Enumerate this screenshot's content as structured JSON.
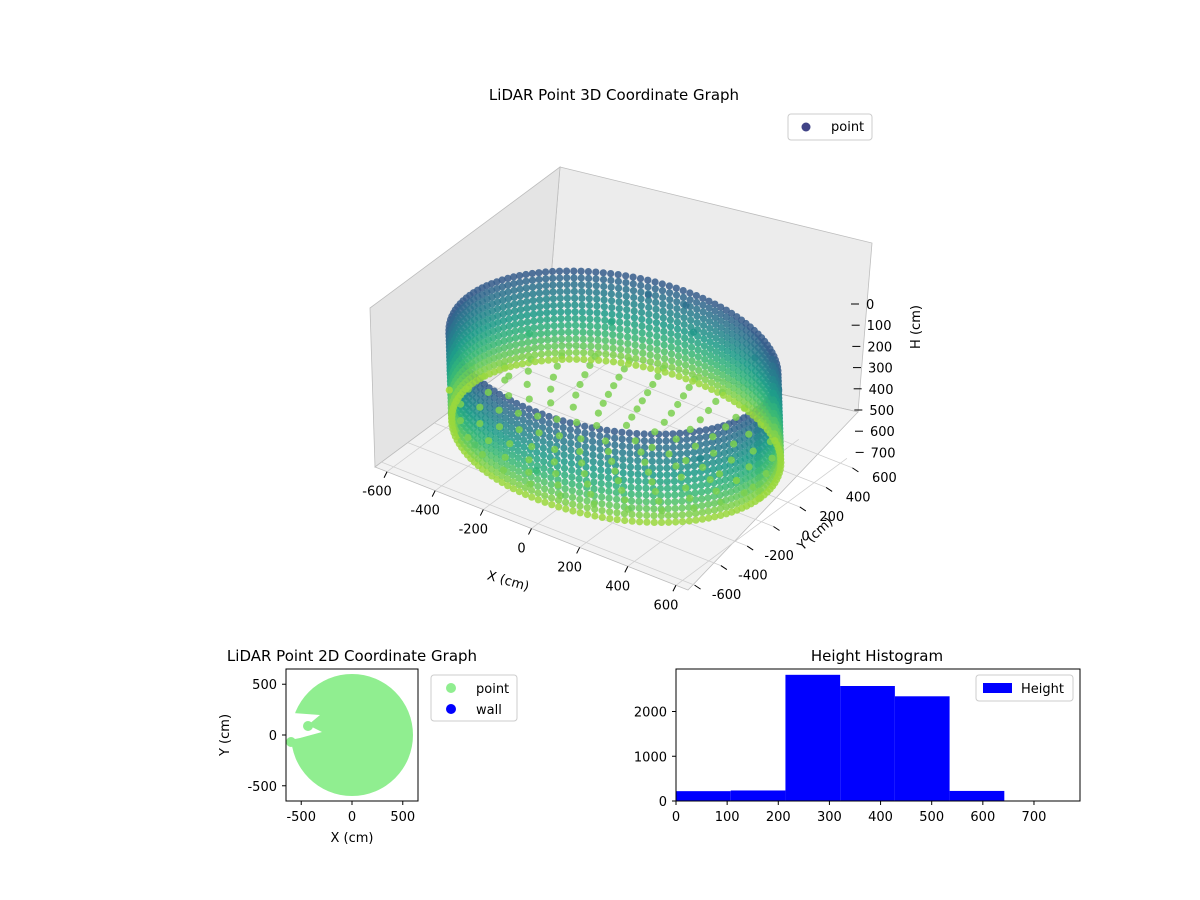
{
  "chart_data": [
    {
      "type": "scatter",
      "projection": "3d",
      "title": "LiDAR Point 3D Coordinate Graph",
      "xlabel": "X (cm)",
      "ylabel": "Y (cm)",
      "zlabel": "H (cm)",
      "xlim": [
        -650,
        650
      ],
      "ylim": [
        -650,
        650
      ],
      "zlim": [
        0,
        750
      ],
      "z_inverted": true,
      "x_ticks": [
        "-600",
        "-400",
        "-200",
        "0",
        "200",
        "400",
        "600"
      ],
      "y_ticks": [
        "-600",
        "-400",
        "-200",
        "0",
        "200",
        "400",
        "600"
      ],
      "z_ticks": [
        "0",
        "100",
        "200",
        "300",
        "400",
        "500",
        "600",
        "700"
      ],
      "colormap": "viridis",
      "legend": {
        "entries": [
          "point"
        ],
        "placement": "top-right"
      },
      "grid": true,
      "series": [
        {
          "name": "point",
          "shape": "circular wall of points around the origin with scattered interior points",
          "radius": 600,
          "h_range": [
            200,
            650
          ],
          "samples": [
            {
              "x": 600,
              "y": 0,
              "h": 250
            },
            {
              "x": 520,
              "y": 300,
              "h": 300
            },
            {
              "x": 300,
              "y": 520,
              "h": 350
            },
            {
              "x": 0,
              "y": 600,
              "h": 400
            },
            {
              "x": -300,
              "y": 520,
              "h": 450
            },
            {
              "x": -520,
              "y": 300,
              "h": 500
            },
            {
              "x": -600,
              "y": 0,
              "h": 550
            },
            {
              "x": -520,
              "y": -300,
              "h": 600
            },
            {
              "x": -300,
              "y": -520,
              "h": 550
            },
            {
              "x": 0,
              "y": -600,
              "h": 500
            },
            {
              "x": 300,
              "y": -520,
              "h": 450
            },
            {
              "x": 520,
              "y": -300,
              "h": 350
            },
            {
              "x": -650,
              "y": -80,
              "h": 650
            },
            {
              "x": -500,
              "y": 100,
              "h": 600
            },
            {
              "x": -100,
              "y": 450,
              "h": 200
            },
            {
              "x": 0,
              "y": 550,
              "h": 250
            }
          ]
        }
      ]
    },
    {
      "type": "scatter",
      "title": "LiDAR Point 2D Coordinate Graph",
      "xlabel": "X (cm)",
      "ylabel": "Y (cm)",
      "xlim": [
        -650,
        650
      ],
      "ylim": [
        -650,
        650
      ],
      "x_ticks": [
        "-500",
        "0",
        "500"
      ],
      "y_ticks": [
        "-500",
        "0",
        "500"
      ],
      "legend": {
        "entries": [
          "point",
          "wall"
        ],
        "placement": "outside-right"
      },
      "series": [
        {
          "name": "point",
          "color": "#90ee90",
          "shape": "filled disk of radius ~600 cm with a gap on the left side",
          "radius": 600,
          "samples": [
            {
              "x": -450,
              "y": 90
            },
            {
              "x": -620,
              "y": -70
            }
          ]
        },
        {
          "name": "wall",
          "color": "#0000ff",
          "values": []
        }
      ]
    },
    {
      "type": "bar",
      "subtype": "histogram",
      "title": "Height Histogram",
      "xlabel": "",
      "ylabel": "",
      "xlim": [
        0,
        790
      ],
      "ylim": [
        0,
        2950
      ],
      "x_ticks": [
        "0",
        "100",
        "200",
        "300",
        "400",
        "500",
        "600",
        "700"
      ],
      "y_ticks": [
        "0",
        "1000",
        "2000"
      ],
      "legend": {
        "entries": [
          "Height"
        ],
        "placement": "top-right"
      },
      "series": [
        {
          "name": "Height",
          "color": "#0000ff",
          "bins": [
            {
              "start": 0,
              "end": 107,
              "count": 220
            },
            {
              "start": 107,
              "end": 214,
              "count": 235
            },
            {
              "start": 214,
              "end": 321,
              "count": 2820
            },
            {
              "start": 321,
              "end": 428,
              "count": 2570
            },
            {
              "start": 428,
              "end": 535,
              "count": 2340
            },
            {
              "start": 535,
              "end": 642,
              "count": 225
            },
            {
              "start": 642,
              "end": 749,
              "count": 0
            }
          ]
        }
      ]
    }
  ],
  "colors": {
    "pane": "#f2f2f2",
    "pane_dark": "#e6e6e6",
    "grid": "#c8c8c8",
    "point_2d": "#90ee90",
    "wall": "#0000ff",
    "histogram": "#0000ff",
    "legend_3d": "#414487"
  }
}
